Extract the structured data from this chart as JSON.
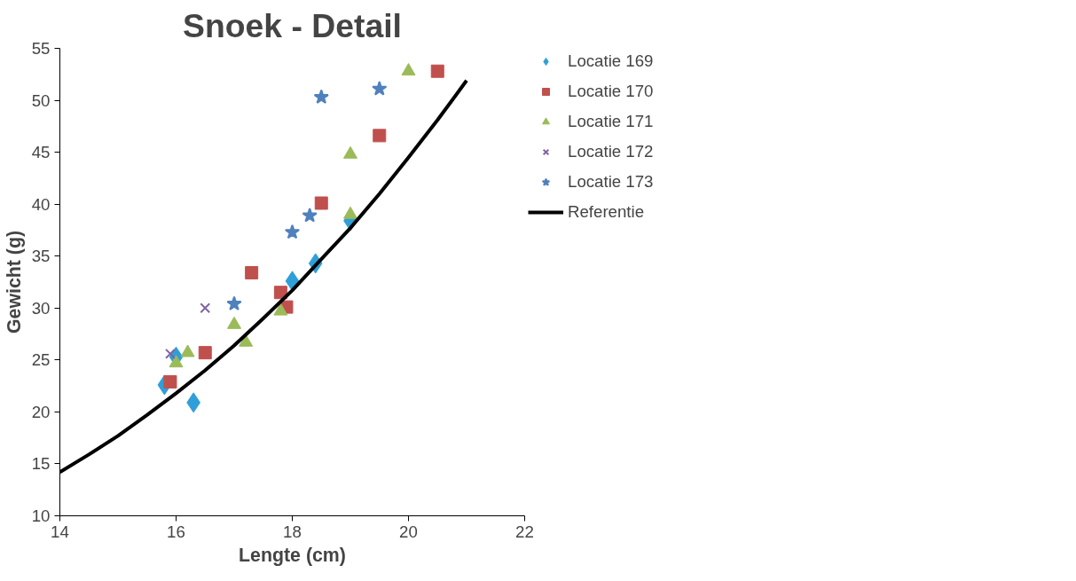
{
  "chart_data": {
    "type": "scatter",
    "title": "Snoek - Detail",
    "xlabel": "Lengte (cm)",
    "ylabel": "Gewicht (g)",
    "xlim": [
      14,
      22
    ],
    "xticks": [
      14,
      16,
      18,
      20,
      22
    ],
    "ylim": [
      10,
      55
    ],
    "yticks": [
      10,
      15,
      20,
      25,
      30,
      35,
      40,
      45,
      50,
      55
    ],
    "grid": false,
    "legend": "right",
    "series": [
      {
        "name": "Locatie 169",
        "marker": "diamond",
        "color": "#2e9fd8",
        "x": [
          15.8,
          16.0,
          16.3,
          18.0,
          18.4,
          19.0
        ],
        "values": [
          22.6,
          25.3,
          20.9,
          32.6,
          34.3,
          38.4
        ]
      },
      {
        "name": "Locatie 170",
        "marker": "square",
        "color": "#c0504d",
        "x": [
          15.9,
          16.5,
          17.3,
          17.8,
          17.9,
          18.5,
          19.5,
          20.5
        ],
        "values": [
          22.9,
          25.7,
          33.4,
          31.5,
          30.1,
          40.1,
          46.6,
          52.8
        ]
      },
      {
        "name": "Locatie 171",
        "marker": "triangle",
        "color": "#9bbb59",
        "x": [
          16.0,
          16.2,
          17.0,
          17.2,
          17.8,
          19.0,
          19.0,
          20.0
        ],
        "values": [
          24.7,
          25.7,
          28.4,
          26.7,
          29.7,
          44.8,
          39.0,
          52.8
        ]
      },
      {
        "name": "Locatie 172",
        "marker": "cross",
        "color": "#8064a2",
        "x": [
          15.9,
          16.5
        ],
        "values": [
          25.6,
          30.0
        ]
      },
      {
        "name": "Locatie 173",
        "marker": "star",
        "color": "#4f81bd",
        "x": [
          17.0,
          18.0,
          18.3,
          18.5,
          19.5
        ],
        "values": [
          30.4,
          37.3,
          38.9,
          50.3,
          51.1
        ]
      },
      {
        "name": "Referentie",
        "type": "line",
        "marker": "none",
        "line_style": "solid",
        "color": "#000000",
        "x": [
          14,
          14.5,
          15,
          15.5,
          16,
          16.5,
          17,
          17.5,
          18,
          18.5,
          19,
          19.5,
          20,
          20.5,
          21
        ],
        "values": [
          14.2,
          15.9,
          17.7,
          19.7,
          21.8,
          24.0,
          26.4,
          29.0,
          31.7,
          34.7,
          37.7,
          41.0,
          44.5,
          48.1,
          51.9
        ]
      }
    ]
  }
}
